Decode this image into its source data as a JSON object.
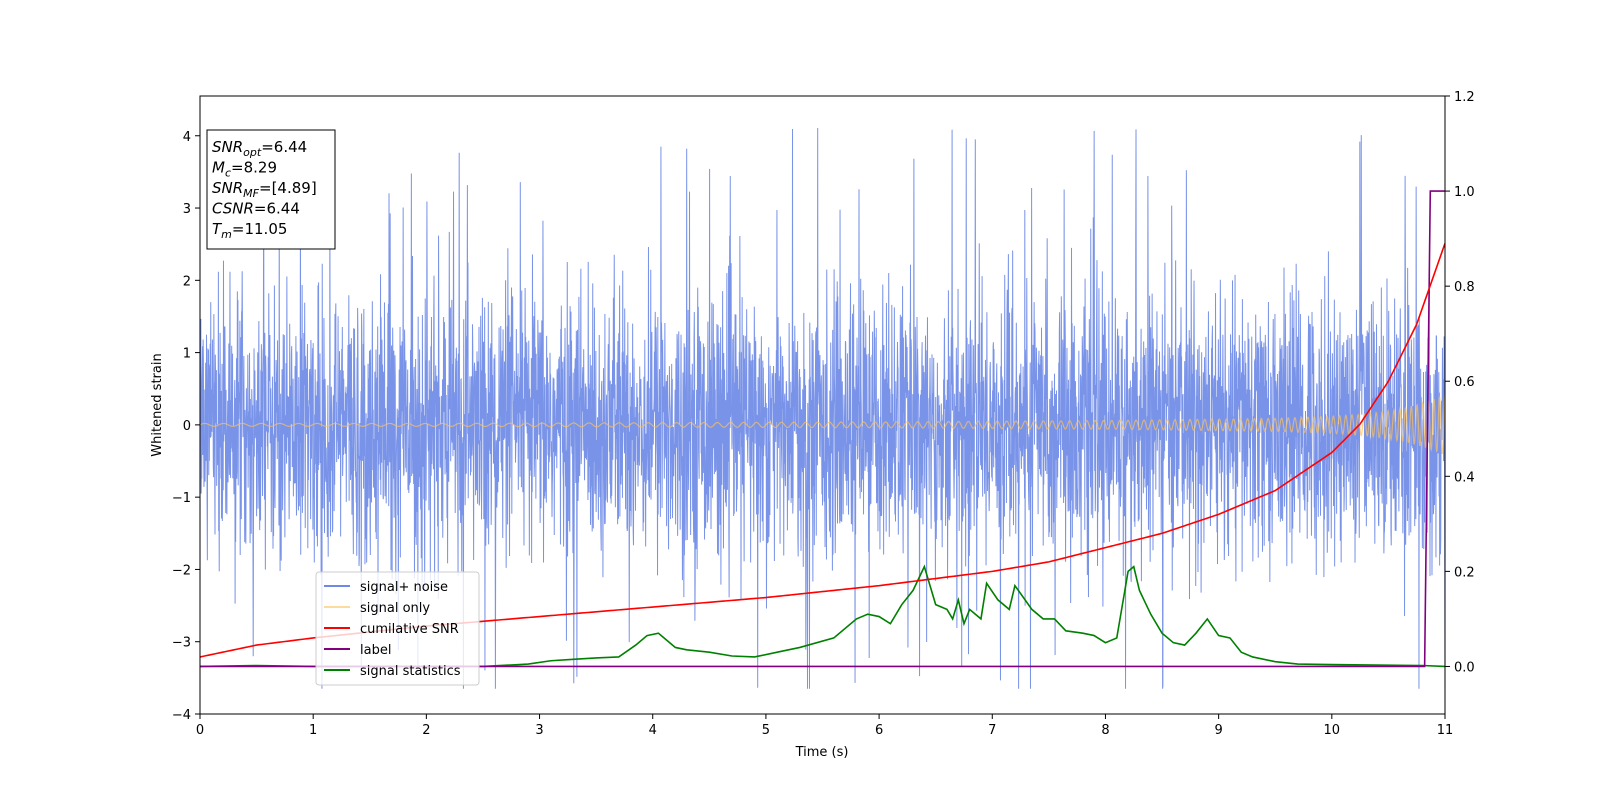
{
  "chart_data": {
    "type": "line",
    "xlabel": "Time (s)",
    "ylabel": "Whitened strain",
    "ylabel_right": "",
    "xlim": [
      0,
      11
    ],
    "ylim": [
      -4,
      4.55
    ],
    "ylim_right": [
      -0.1,
      1.2
    ],
    "x_ticks": [
      "0",
      "1",
      "2",
      "3",
      "4",
      "5",
      "6",
      "7",
      "8",
      "9",
      "10",
      "11"
    ],
    "y_ticks": [
      "4",
      "3",
      "2",
      "1",
      "0",
      "−1",
      "−2",
      "−3",
      "−4"
    ],
    "y_right_ticks": [
      "1.2",
      "1.0",
      "0.8",
      "0.6",
      "0.4",
      "0.2",
      "0.0"
    ],
    "grid": false,
    "legend_position": "lower-left",
    "series": [
      {
        "name": "signal+ noise",
        "axis": "left",
        "color": "#6e8ae6",
        "description": "dense whitened noise spanning roughly -2.5 to +2.5 with spikes to about ±4"
      },
      {
        "name": "signal only",
        "axis": "left",
        "color": "#fbc15e",
        "envelope_x": [
          0,
          2,
          4,
          6,
          7,
          8,
          9,
          9.5,
          10,
          10.3,
          10.6,
          10.8,
          11
        ],
        "envelope_y": [
          0.02,
          0.02,
          0.03,
          0.04,
          0.05,
          0.06,
          0.08,
          0.09,
          0.12,
          0.15,
          0.22,
          0.3,
          0.42
        ]
      },
      {
        "name": "cumilative SNR",
        "axis": "right",
        "color": "#ff0000",
        "x": [
          0,
          0.5,
          1,
          2,
          3,
          4,
          5,
          6,
          7,
          7.5,
          8,
          8.5,
          9,
          9.5,
          10,
          10.25,
          10.5,
          10.75,
          11
        ],
        "y": [
          0.02,
          0.045,
          0.06,
          0.085,
          0.105,
          0.125,
          0.145,
          0.17,
          0.2,
          0.22,
          0.25,
          0.28,
          0.32,
          0.37,
          0.45,
          0.51,
          0.6,
          0.72,
          0.89
        ]
      },
      {
        "name": "label",
        "axis": "right",
        "color": "#800080",
        "x": [
          0,
          10.82,
          10.87,
          11
        ],
        "y": [
          0,
          0,
          1,
          1
        ]
      },
      {
        "name": "signal statistics",
        "axis": "right",
        "color": "#008000",
        "x": [
          0,
          0.5,
          1,
          2,
          2.5,
          2.9,
          3.1,
          3.3,
          3.5,
          3.7,
          3.85,
          3.95,
          4.05,
          4.2,
          4.3,
          4.5,
          4.7,
          4.9,
          5.1,
          5.3,
          5.6,
          5.8,
          5.9,
          6.0,
          6.1,
          6.2,
          6.3,
          6.4,
          6.45,
          6.5,
          6.6,
          6.65,
          6.7,
          6.75,
          6.8,
          6.9,
          6.95,
          7.05,
          7.15,
          7.2,
          7.35,
          7.45,
          7.55,
          7.65,
          7.8,
          7.9,
          8.0,
          8.1,
          8.2,
          8.25,
          8.3,
          8.4,
          8.5,
          8.6,
          8.7,
          8.8,
          8.9,
          9.0,
          9.1,
          9.2,
          9.3,
          9.5,
          9.7,
          10.0,
          10.4,
          10.8,
          11
        ],
        "y": [
          0.0,
          0.002,
          0.0,
          0.0,
          0.0,
          0.005,
          0.012,
          0.015,
          0.018,
          0.02,
          0.045,
          0.065,
          0.07,
          0.04,
          0.035,
          0.03,
          0.022,
          0.02,
          0.03,
          0.04,
          0.06,
          0.1,
          0.11,
          0.105,
          0.09,
          0.13,
          0.16,
          0.21,
          0.17,
          0.13,
          0.12,
          0.1,
          0.14,
          0.09,
          0.12,
          0.1,
          0.175,
          0.14,
          0.12,
          0.17,
          0.12,
          0.1,
          0.1,
          0.075,
          0.07,
          0.065,
          0.05,
          0.06,
          0.2,
          0.21,
          0.16,
          0.11,
          0.07,
          0.05,
          0.045,
          0.07,
          0.1,
          0.065,
          0.06,
          0.03,
          0.02,
          0.01,
          0.005,
          0.004,
          0.003,
          0.002,
          0.0
        ]
      }
    ]
  },
  "info_box": {
    "lines": [
      {
        "main": "SNR",
        "sub": "opt",
        "value": "=6.44"
      },
      {
        "main": "M",
        "sub": "c",
        "value": "=8.29"
      },
      {
        "main": "SNR",
        "sub": "MF",
        "value": "=[4.89]"
      },
      {
        "main": "CSNR",
        "sub": "",
        "value": "=6.44"
      },
      {
        "main": "T",
        "sub": "m",
        "value": "=11.05"
      }
    ]
  }
}
